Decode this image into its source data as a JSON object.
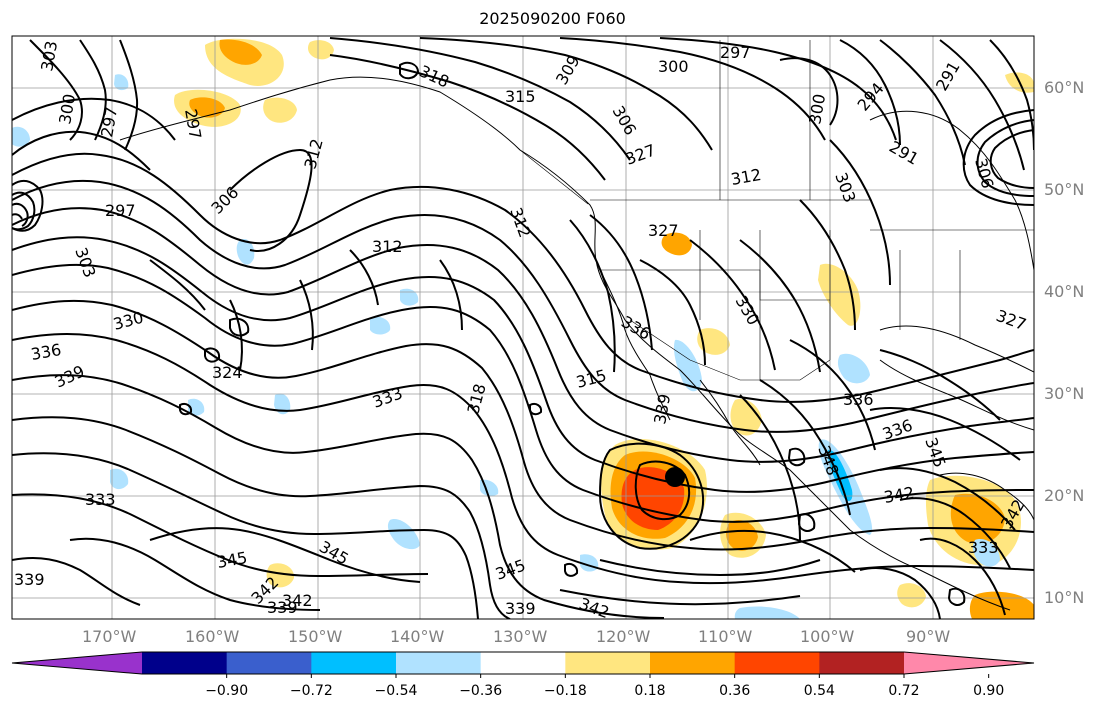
{
  "title": "2025090200 F060",
  "lat_labels": [
    "60°N",
    "50°N",
    "40°N",
    "30°N",
    "20°N",
    "10°N"
  ],
  "lon_labels": [
    "170°W",
    "160°W",
    "150°W",
    "140°W",
    "130°W",
    "120°W",
    "110°W",
    "100°W",
    "90°W"
  ],
  "contour_labels": [
    "303",
    "300",
    "297",
    "297",
    "318",
    "315",
    "309",
    "306",
    "300",
    "294",
    "291",
    "300",
    "297",
    "291",
    "306",
    "312",
    "327",
    "312",
    "303",
    "297",
    "306",
    "312",
    "312",
    "327",
    "303",
    "330",
    "333",
    "336",
    "339",
    "324",
    "333",
    "318",
    "315",
    "336",
    "330",
    "327",
    "339",
    "336",
    "345",
    "348",
    "336",
    "342",
    "333",
    "339",
    "345",
    "342",
    "345",
    "339",
    "342",
    "342",
    "339",
    "345",
    "342"
  ],
  "colorbar": {
    "tick_labels": [
      "−0.90",
      "−0.72",
      "−0.54",
      "−0.36",
      "−0.18",
      "0.18",
      "0.36",
      "0.54",
      "0.72",
      "0.90"
    ],
    "colors": [
      "#9932cc",
      "#00008b",
      "#3a5fcd",
      "#00bfff",
      "#b0e2ff",
      "#ffffff",
      "#ffe680",
      "#ffa500",
      "#ff4500",
      "#b22222",
      "#ff88aa"
    ]
  },
  "center_marker": "filled-circle"
}
